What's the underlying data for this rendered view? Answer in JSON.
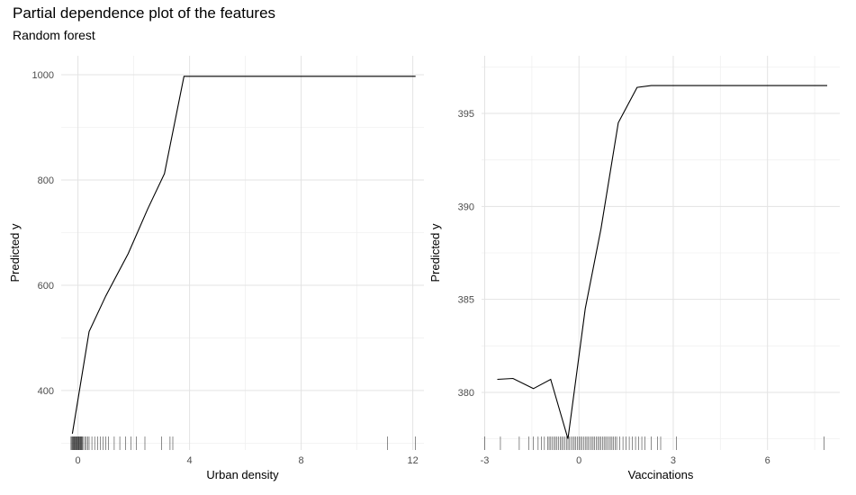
{
  "title": "Partial dependence plot of the features",
  "subtitle": "Random forest",
  "chart_data": [
    {
      "type": "line",
      "xlabel": "Urban density",
      "ylabel": "Predicted y",
      "xlim": [
        -0.6,
        12.4
      ],
      "ylim": [
        287,
        1036
      ],
      "x_ticks": [
        0,
        4,
        8,
        12
      ],
      "y_ticks": [
        400,
        600,
        800,
        1000
      ],
      "grid": true,
      "series": [
        {
          "x": [
            -0.2,
            0.4,
            1.0,
            1.8,
            2.5,
            3.1,
            3.8,
            4.3,
            6.0,
            8.0,
            10.0,
            12.1
          ],
          "y": [
            318,
            512,
            580,
            660,
            745,
            812,
            997,
            997,
            997,
            997,
            997,
            997
          ]
        }
      ],
      "rug": [
        -0.25,
        -0.22,
        -0.2,
        -0.18,
        -0.16,
        -0.14,
        -0.12,
        -0.1,
        -0.08,
        -0.06,
        -0.04,
        -0.02,
        0.0,
        0.02,
        0.04,
        0.06,
        0.08,
        0.1,
        0.12,
        0.14,
        0.16,
        0.2,
        0.25,
        0.3,
        0.35,
        0.4,
        0.5,
        0.6,
        0.7,
        0.8,
        0.9,
        1.0,
        1.1,
        1.3,
        1.5,
        1.7,
        1.9,
        2.1,
        2.4,
        3.0,
        3.3,
        3.4,
        11.1,
        12.1
      ]
    },
    {
      "type": "line",
      "xlabel": "Vaccinations",
      "ylabel": "Predicted y",
      "xlim": [
        -3.1,
        8.3
      ],
      "ylim": [
        376.9,
        398.1
      ],
      "x_ticks": [
        -3,
        0,
        3,
        6
      ],
      "y_ticks": [
        380,
        385,
        390,
        395
      ],
      "grid": true,
      "series": [
        {
          "x": [
            -2.6,
            -2.1,
            -1.45,
            -0.9,
            -0.35,
            0.2,
            0.7,
            1.25,
            1.85,
            2.3,
            4.0,
            6.0,
            7.9
          ],
          "y": [
            380.7,
            380.75,
            380.2,
            380.7,
            377.5,
            384.5,
            388.8,
            394.5,
            396.4,
            396.5,
            396.5,
            396.5,
            396.5
          ]
        }
      ],
      "rug": [
        -3.0,
        -2.5,
        -1.9,
        -1.6,
        -1.45,
        -1.3,
        -1.2,
        -1.1,
        -1.0,
        -0.95,
        -0.9,
        -0.85,
        -0.8,
        -0.75,
        -0.7,
        -0.65,
        -0.6,
        -0.55,
        -0.5,
        -0.45,
        -0.4,
        -0.35,
        -0.3,
        -0.25,
        -0.2,
        -0.15,
        -0.1,
        -0.05,
        0.0,
        0.05,
        0.1,
        0.15,
        0.2,
        0.25,
        0.3,
        0.35,
        0.4,
        0.45,
        0.5,
        0.55,
        0.6,
        0.65,
        0.7,
        0.75,
        0.8,
        0.85,
        0.9,
        0.95,
        1.0,
        1.05,
        1.1,
        1.15,
        1.2,
        1.3,
        1.4,
        1.5,
        1.6,
        1.7,
        1.8,
        1.9,
        2.0,
        2.1,
        2.3,
        2.5,
        2.6,
        3.1,
        7.8
      ]
    }
  ]
}
